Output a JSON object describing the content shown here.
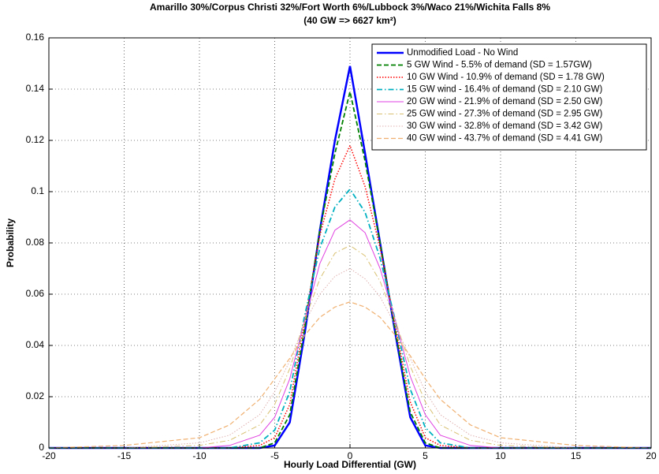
{
  "chart_data": {
    "type": "line",
    "title": "Amarillo 30%/Corpus Christi 32%/Fort Worth 6%/Lubbock 3%/Waco 21%/Wichita Falls 8%",
    "subtitle": "(40 GW => 6627 km²)",
    "x_label": "Hourly Load Differential (GW)",
    "y_label": "Probability",
    "x": [
      -20,
      -15,
      -10,
      -8,
      -6,
      -5,
      -4,
      -3,
      -2,
      -1,
      0,
      1,
      2,
      3,
      4,
      5,
      6,
      8,
      10,
      15,
      20
    ],
    "series": [
      {
        "name": "Unmodified Load - No Wind",
        "color": "#0000ff",
        "dash": "solid",
        "width": 2.5,
        "values": [
          0,
          0,
          0,
          0,
          0,
          0.001,
          0.01,
          0.045,
          0.085,
          0.12,
          0.149,
          0.115,
          0.08,
          0.045,
          0.012,
          0.001,
          0,
          0,
          0,
          0,
          0
        ]
      },
      {
        "name": "5 GW Wind - 5.5% of demand (SD = 1.57GW)",
        "color": "#008000",
        "dash": "dashed",
        "width": 1.8,
        "values": [
          0,
          0,
          0,
          0,
          0,
          0.002,
          0.013,
          0.047,
          0.085,
          0.115,
          0.139,
          0.112,
          0.08,
          0.046,
          0.014,
          0.002,
          0,
          0,
          0,
          0,
          0
        ]
      },
      {
        "name": "10 GW Wind - 10.9% of demand (SD = 1.78 GW)",
        "color": "#ff0000",
        "dash": "dotted",
        "width": 1.5,
        "values": [
          0,
          0,
          0,
          0,
          0.001,
          0.004,
          0.017,
          0.05,
          0.083,
          0.105,
          0.118,
          0.102,
          0.078,
          0.048,
          0.018,
          0.004,
          0.001,
          0,
          0,
          0,
          0
        ]
      },
      {
        "name": "15 GW wind - 16.4% of demand (SD = 2.10 GW)",
        "color": "#00b0c0",
        "dash": "dashdot",
        "width": 1.8,
        "values": [
          0,
          0,
          0,
          0,
          0.002,
          0.007,
          0.022,
          0.052,
          0.078,
          0.094,
          0.101,
          0.092,
          0.074,
          0.05,
          0.023,
          0.008,
          0.002,
          0,
          0,
          0,
          0
        ]
      },
      {
        "name": "20 GW wind - 21.9% of demand (SD = 2.50 GW)",
        "color": "#e040e0",
        "dash": "solid",
        "width": 1,
        "values": [
          0,
          0,
          0,
          0.001,
          0.005,
          0.012,
          0.027,
          0.05,
          0.072,
          0.085,
          0.089,
          0.084,
          0.07,
          0.05,
          0.028,
          0.013,
          0.005,
          0.001,
          0,
          0,
          0
        ]
      },
      {
        "name": "25 GW wind - 27.3% of demand (SD = 2.95 GW)",
        "color": "#d8c070",
        "dash": "dashdot",
        "width": 1,
        "values": [
          0,
          0,
          0.001,
          0.003,
          0.009,
          0.017,
          0.031,
          0.05,
          0.066,
          0.076,
          0.079,
          0.075,
          0.065,
          0.05,
          0.032,
          0.018,
          0.009,
          0.003,
          0.001,
          0,
          0
        ]
      },
      {
        "name": "30 GW wind - 32.8% of demand (SD = 3.42 GW)",
        "color": "#e0b0b0",
        "dash": "dotted",
        "width": 1,
        "values": [
          0,
          0,
          0.002,
          0.005,
          0.013,
          0.022,
          0.034,
          0.049,
          0.06,
          0.067,
          0.07,
          0.066,
          0.059,
          0.048,
          0.035,
          0.022,
          0.013,
          0.005,
          0.002,
          0,
          0
        ]
      },
      {
        "name": "40 GW wind - 43.7% of demand (SD = 4.41 GW)",
        "color": "#f0b070",
        "dash": "dashed",
        "width": 1.2,
        "values": [
          0,
          0.001,
          0.004,
          0.009,
          0.019,
          0.027,
          0.035,
          0.044,
          0.051,
          0.055,
          0.057,
          0.055,
          0.051,
          0.044,
          0.036,
          0.027,
          0.019,
          0.009,
          0.004,
          0.001,
          0
        ]
      }
    ],
    "xlim": [
      -20,
      20
    ],
    "xticks": [
      -20,
      -15,
      -10,
      -5,
      0,
      5,
      10,
      15,
      20
    ],
    "ylim": [
      0,
      0.16
    ],
    "yticks": [
      0,
      0.02,
      0.04,
      0.06,
      0.08,
      0.1,
      0.12,
      0.14,
      0.16
    ],
    "grid": true,
    "legend": "upper right"
  }
}
